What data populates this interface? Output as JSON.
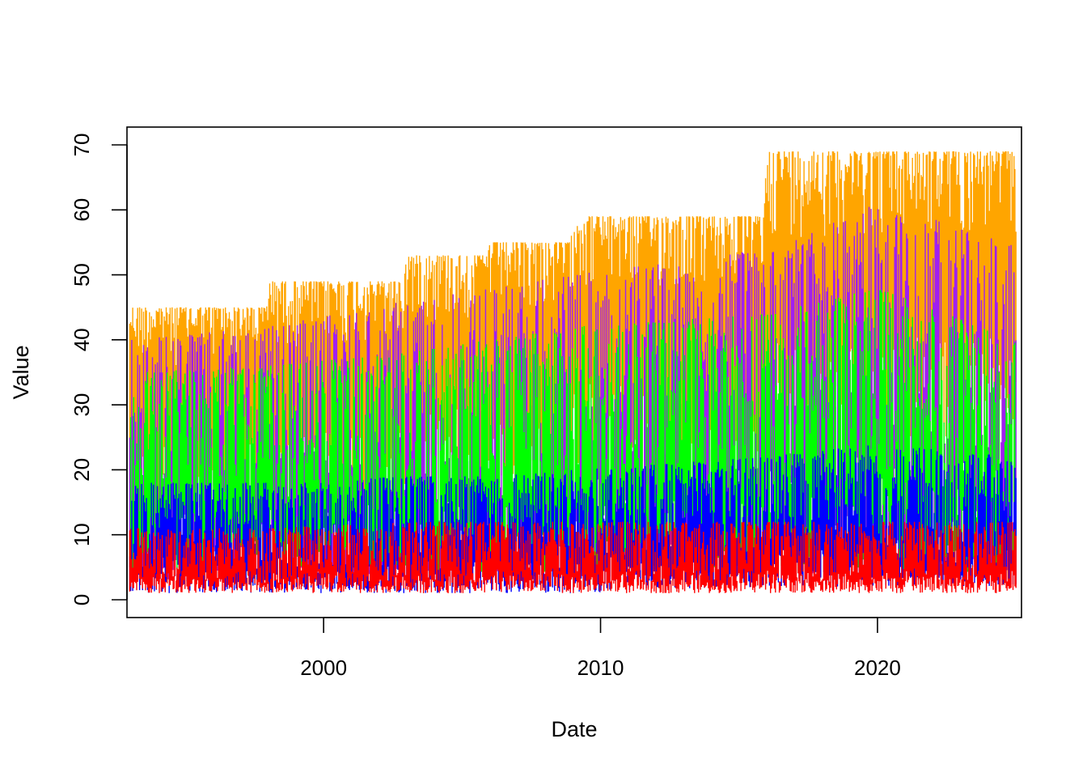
{
  "chart_data": {
    "type": "line",
    "title": "",
    "xlabel": "Date",
    "ylabel": "Value",
    "xlim": [
      1992.9,
      2025.2
    ],
    "ylim": [
      0,
      70
    ],
    "x_ticks": [
      2000,
      2010,
      2020
    ],
    "y_ticks": [
      0,
      10,
      20,
      30,
      40,
      50,
      60,
      70
    ],
    "grid": false,
    "legend": "none",
    "series": [
      {
        "color": "#FFA500",
        "draw_order": 1,
        "style": "vertical-spikes",
        "x": [
          1993.0,
          1997.9,
          1998.0,
          2002.9,
          2003.0,
          2005.9,
          2006.0,
          2008.9,
          2009.0,
          2015.9,
          2016.0,
          2025.0
        ],
        "y_max": [
          45,
          45,
          49,
          49,
          53,
          53,
          55,
          55,
          59,
          59,
          69,
          69
        ],
        "y_min": [
          15,
          15,
          15,
          15,
          18,
          18,
          18,
          18,
          20,
          20,
          25,
          25
        ]
      },
      {
        "color": "#A020F0",
        "draw_order": 2,
        "style": "vertical-spikes",
        "x": [
          1993.0,
          1998.0,
          2003.0,
          2006.0,
          2009.0,
          2016.0,
          2020.0,
          2025.0
        ],
        "y_max": [
          40,
          42,
          46,
          48,
          50,
          54,
          61,
          55
        ],
        "y_min": [
          3,
          3,
          3,
          3,
          3,
          4,
          4,
          4
        ]
      },
      {
        "color": "#00FF00",
        "draw_order": 3,
        "style": "vertical-spikes",
        "x": [
          1993.0,
          1998.0,
          2003.0,
          2006.0,
          2009.0,
          2016.0,
          2020.0,
          2025.0
        ],
        "y_max": [
          35,
          36,
          38,
          40,
          42,
          44,
          48,
          40
        ],
        "y_min": [
          4,
          4,
          4,
          4,
          4,
          4,
          4,
          4
        ]
      },
      {
        "color": "#0000FF",
        "draw_order": 4,
        "style": "vertical-spikes",
        "x": [
          1993.0,
          1998.0,
          2003.0,
          2006.0,
          2009.0,
          2016.0,
          2020.0,
          2025.0
        ],
        "y_max": [
          18,
          18,
          19,
          19,
          20,
          22,
          24,
          22
        ],
        "y_min": [
          1,
          1,
          1,
          1,
          1,
          2,
          2,
          2
        ]
      },
      {
        "color": "#FF0000",
        "draw_order": 5,
        "style": "vertical-spikes",
        "x": [
          1993.0,
          1998.0,
          2003.0,
          2006.0,
          2009.0,
          2016.0,
          2020.0,
          2025.0
        ],
        "y_max": [
          11,
          11,
          12,
          12,
          12,
          12,
          12,
          12
        ],
        "y_min": [
          1,
          1,
          1,
          1,
          1,
          1,
          1,
          1
        ]
      }
    ]
  }
}
